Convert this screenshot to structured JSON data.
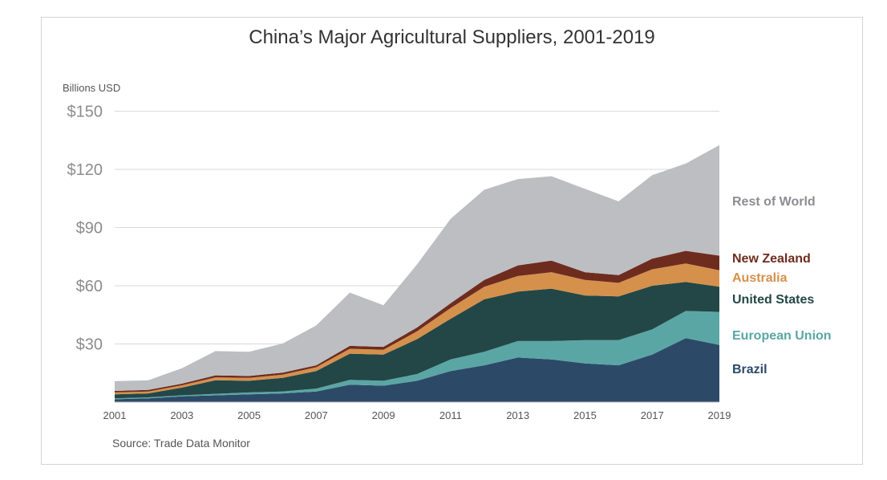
{
  "chart_data": {
    "type": "area",
    "stacked": true,
    "title": "China’s Major Agricultural Suppliers, 2001-2019",
    "ylabel": "Billions USD",
    "source": "Source: Trade Data Monitor",
    "ylim": [
      0,
      150
    ],
    "yticks": [
      30,
      60,
      90,
      120,
      150
    ],
    "ytick_labels": [
      "$30",
      "$60",
      "$90",
      "$120",
      "$150"
    ],
    "x": [
      2001,
      2002,
      2003,
      2004,
      2005,
      2006,
      2007,
      2008,
      2009,
      2010,
      2011,
      2012,
      2013,
      2014,
      2015,
      2016,
      2017,
      2018,
      2019
    ],
    "xticks": [
      2001,
      2003,
      2005,
      2007,
      2009,
      2011,
      2013,
      2015,
      2017,
      2019
    ],
    "xtick_labels": [
      "2001",
      "2003",
      "2005",
      "2007",
      "2009",
      "2011",
      "2013",
      "2015",
      "2017",
      "2019"
    ],
    "grid": true,
    "legend_placement": "right, inline labels",
    "series": [
      {
        "name": "Brazil",
        "color": "#2c4a68",
        "values": [
          1.5,
          2,
          3,
          3.5,
          4,
          4.5,
          5.5,
          9,
          8.5,
          11,
          16,
          19,
          23,
          22,
          20,
          19,
          24.5,
          33,
          29.5
        ]
      },
      {
        "name": "European Union",
        "color": "#5aa6a5",
        "values": [
          0.5,
          0.5,
          0.5,
          0.8,
          1,
          1,
          1.5,
          2.5,
          2.5,
          3.5,
          6,
          7,
          8.5,
          9.5,
          12,
          13,
          13,
          14,
          17
        ]
      },
      {
        "name": "United States",
        "color": "#234746",
        "values": [
          2,
          2,
          4,
          7,
          6,
          7,
          9,
          13.5,
          13.5,
          18,
          21,
          27,
          25.5,
          27,
          23,
          22.5,
          22.5,
          15,
          13
        ]
      },
      {
        "name": "Australia",
        "color": "#d5904c",
        "values": [
          1,
          1,
          1.2,
          1.5,
          1.5,
          1.7,
          2,
          2.5,
          2.5,
          4,
          5.5,
          6.5,
          8,
          8.5,
          8,
          7,
          8.5,
          9.5,
          8.5
        ]
      },
      {
        "name": "New Zealand",
        "color": "#6e2c1f",
        "values": [
          0.8,
          0.8,
          0.8,
          1,
          1,
          1,
          1,
          1.5,
          1.5,
          2,
          2.5,
          3.5,
          5.5,
          6,
          4,
          4,
          5.5,
          6.5,
          7.5
        ]
      },
      {
        "name": "Rest of World",
        "color": "#bdbec2",
        "values": [
          5,
          5,
          8,
          12.5,
          12.5,
          15,
          20.5,
          27.5,
          21.5,
          32.5,
          43.5,
          46.5,
          44.5,
          43.5,
          43,
          38,
          43,
          45,
          57
        ]
      }
    ]
  }
}
